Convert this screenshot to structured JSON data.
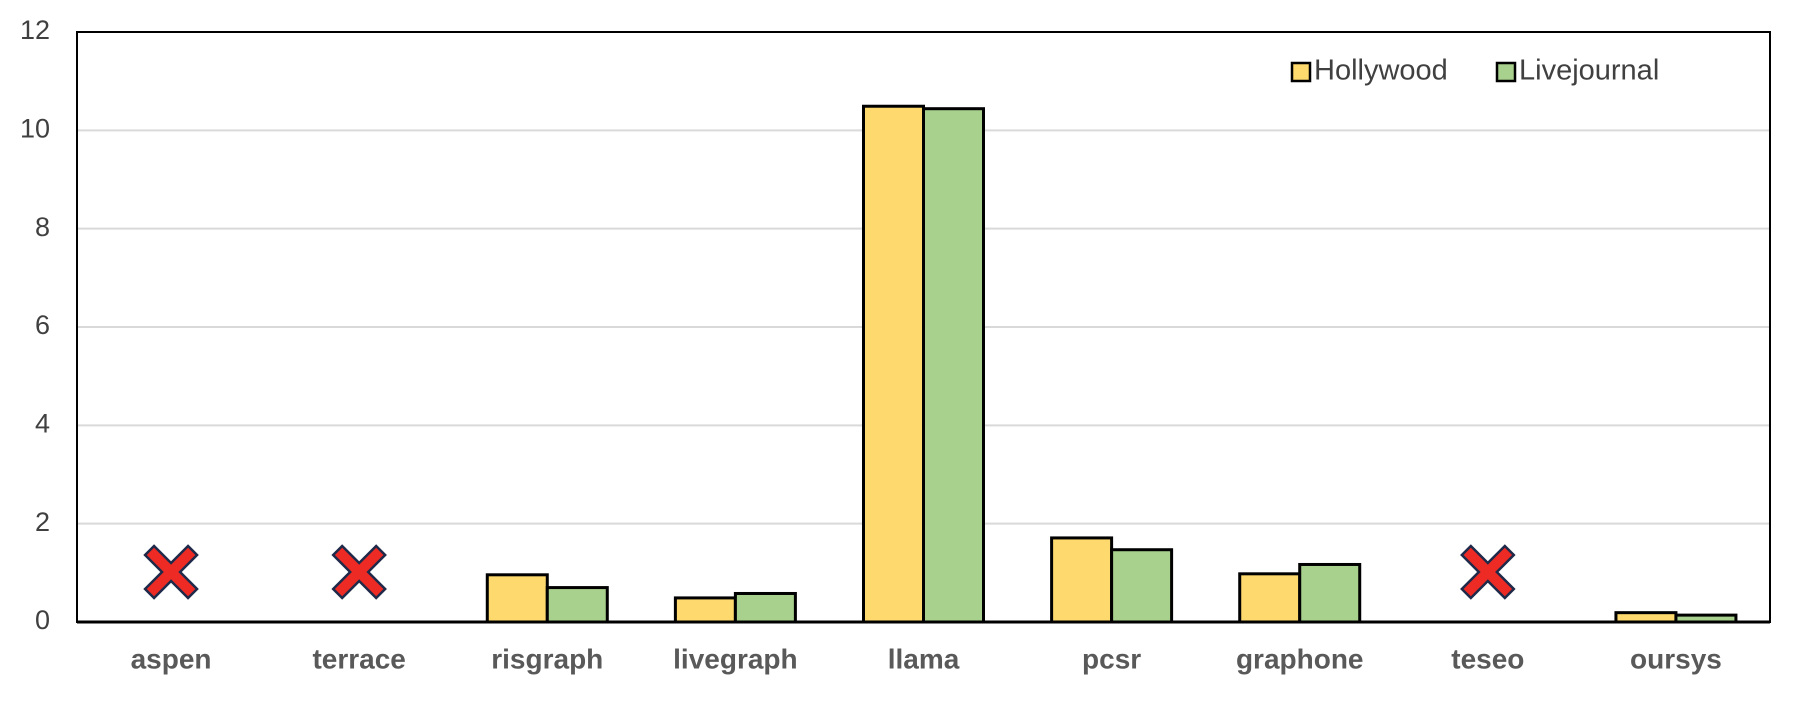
{
  "chart_data": {
    "type": "bar",
    "categories": [
      "aspen",
      "terrace",
      "risgraph",
      "livegraph",
      "llama",
      "pcsr",
      "graphone",
      "teseo",
      "oursys"
    ],
    "series": [
      {
        "name": "Hollywood",
        "color": "#fdd96e",
        "values": [
          null,
          null,
          0.96,
          0.49,
          10.49,
          1.71,
          0.98,
          null,
          0.19
        ]
      },
      {
        "name": "Livejournal",
        "color": "#a9d18e",
        "values": [
          null,
          null,
          0.7,
          0.58,
          10.44,
          1.47,
          1.17,
          null,
          0.14
        ]
      }
    ],
    "ylim": [
      0,
      12
    ],
    "yticks": [
      0,
      2,
      4,
      6,
      8,
      10,
      12
    ],
    "grid": true,
    "legend": "upper right"
  }
}
